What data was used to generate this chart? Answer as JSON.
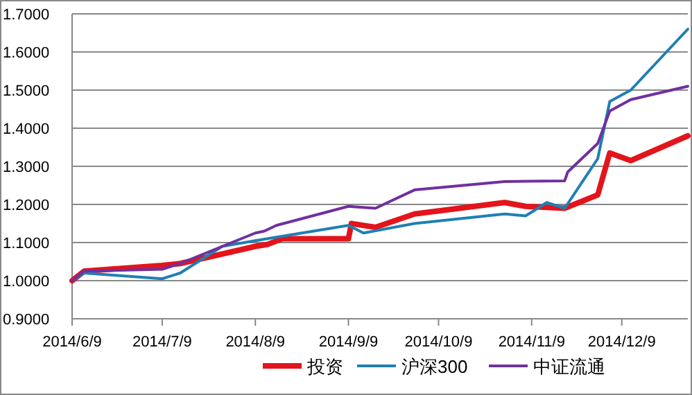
{
  "chart_data": {
    "type": "line",
    "xlim": [
      "2014-06-09",
      "2014-12-31"
    ],
    "xticks": [
      {
        "value": "2014-06-09",
        "label": "2014/6/9"
      },
      {
        "value": "2014-07-09",
        "label": "2014/7/9"
      },
      {
        "value": "2014-08-09",
        "label": "2014/8/9"
      },
      {
        "value": "2014-09-09",
        "label": "2014/9/9"
      },
      {
        "value": "2014-10-09",
        "label": "2014/10/9"
      },
      {
        "value": "2014-11-09",
        "label": "2014/11/9"
      },
      {
        "value": "2014-12-09",
        "label": "2014/12/9"
      }
    ],
    "ylim": [
      0.9,
      1.7
    ],
    "yticks": [
      {
        "value": 0.9,
        "label": "0.9000"
      },
      {
        "value": 1.0,
        "label": "1.0000"
      },
      {
        "value": 1.1,
        "label": "1.1000"
      },
      {
        "value": 1.2,
        "label": "1.2000"
      },
      {
        "value": 1.3,
        "label": "1.3000"
      },
      {
        "value": 1.4,
        "label": "1.4000"
      },
      {
        "value": 1.5,
        "label": "1.5000"
      },
      {
        "value": 1.6,
        "label": "1.6000"
      },
      {
        "value": 1.7,
        "label": "1.7000"
      }
    ],
    "grid": "y",
    "legend": "bottom",
    "marker": "none",
    "line_style": "solid",
    "series": [
      {
        "name": "投资",
        "color": "#e3141b",
        "x": [
          "2014-06-09",
          "2014-06-13",
          "2014-07-09",
          "2014-07-15",
          "2014-07-29",
          "2014-08-09",
          "2014-08-13",
          "2014-08-18",
          "2014-09-09",
          "2014-09-10",
          "2014-09-18",
          "2014-10-01",
          "2014-10-31",
          "2014-11-07",
          "2014-11-20",
          "2014-12-01",
          "2014-12-05",
          "2014-12-12",
          "2014-12-31"
        ],
        "values": [
          1.0,
          1.025,
          1.04,
          1.045,
          1.07,
          1.09,
          1.095,
          1.11,
          1.11,
          1.15,
          1.14,
          1.175,
          1.205,
          1.195,
          1.19,
          1.225,
          1.335,
          1.315,
          1.38
        ]
      },
      {
        "name": "沪深300",
        "color": "#1f7fb4",
        "x": [
          "2014-06-09",
          "2014-06-13",
          "2014-07-09",
          "2014-07-15",
          "2014-07-29",
          "2014-08-09",
          "2014-09-09",
          "2014-09-14",
          "2014-10-01",
          "2014-10-31",
          "2014-11-07",
          "2014-11-14",
          "2014-11-20",
          "2014-12-01",
          "2014-12-05",
          "2014-12-12",
          "2014-12-31"
        ],
        "values": [
          1.0,
          1.02,
          1.005,
          1.02,
          1.09,
          1.105,
          1.145,
          1.125,
          1.15,
          1.175,
          1.17,
          1.205,
          1.19,
          1.32,
          1.47,
          1.5,
          1.66
        ]
      },
      {
        "name": "中证流通",
        "color": "#7030a0",
        "x": [
          "2014-06-09",
          "2014-06-13",
          "2014-07-09",
          "2014-07-15",
          "2014-07-29",
          "2014-08-09",
          "2014-08-12",
          "2014-08-16",
          "2014-09-09",
          "2014-09-18",
          "2014-10-01",
          "2014-10-31",
          "2014-11-20",
          "2014-11-21",
          "2014-12-01",
          "2014-12-05",
          "2014-12-12",
          "2014-12-31"
        ],
        "values": [
          1.0,
          1.025,
          1.03,
          1.045,
          1.09,
          1.125,
          1.13,
          1.145,
          1.195,
          1.19,
          1.238,
          1.26,
          1.262,
          1.285,
          1.36,
          1.445,
          1.475,
          1.51
        ]
      }
    ]
  }
}
